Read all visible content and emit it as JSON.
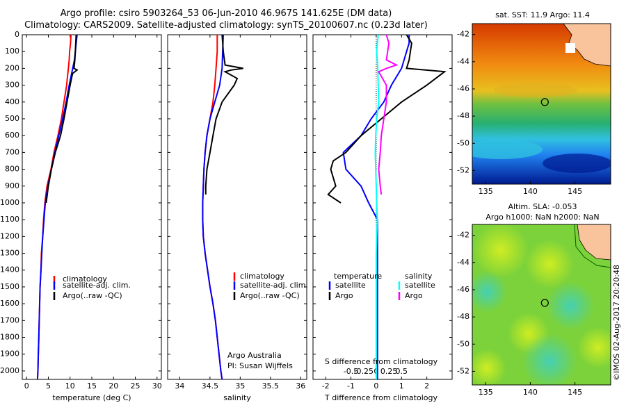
{
  "header": {
    "line1": "Argo profile: csiro 5903264_53 06-Jun-2010 46.967S 141.625E (DM data)",
    "line2": "Climatology: CARS2009. Satellite-adjusted climatology: synTS_20100607.nc (0.23d later)"
  },
  "maps": {
    "sst_title": "sat. SST: 11.9 Argo: 11.4",
    "sla_title1": "Altim. SLA: -0.053",
    "sla_title2": "Argo h1000: NaN h2000: NaN",
    "lon_ticks": [
      "135",
      "140",
      "145"
    ],
    "lat_ticks": [
      "-42",
      "-44",
      "-46",
      "-48",
      "-50",
      "-52"
    ],
    "stamp": "©IMOS 02-Aug-2017 20:20:48",
    "float_position": {
      "lon": 141.625,
      "lat": -46.967
    }
  },
  "colors": {
    "climatology": "#ff0000",
    "satellite": "#0000ff",
    "argo": "#000000",
    "salinity_satellite": "#00ffff",
    "salinity_argo": "#ff00ff",
    "land": "#f9c39c"
  },
  "chart_data": [
    {
      "type": "line",
      "panel": "temperature",
      "xlabel": "temperature (deg C)",
      "xlim": [
        -1,
        31
      ],
      "xticks": [
        "0",
        "5",
        "10",
        "15",
        "20",
        "25",
        "30"
      ],
      "ylim": [
        2050,
        0
      ],
      "yticks": [
        "0",
        "100",
        "200",
        "300",
        "400",
        "500",
        "600",
        "700",
        "800",
        "900",
        "1000",
        "1100",
        "1200",
        "1300",
        "1400",
        "1500",
        "1600",
        "1700",
        "1800",
        "1900",
        "2000"
      ],
      "legend": [
        "climatology",
        "satellite-adj. clim.",
        "Argo(..raw -QC)"
      ],
      "series": [
        {
          "name": "climatology",
          "depth": [
            0,
            50,
            100,
            150,
            200,
            250,
            300,
            400,
            500,
            600,
            700,
            800,
            900,
            1000,
            1100,
            1200,
            1300,
            1400,
            1500,
            1600,
            1700,
            1800,
            1900,
            2000,
            2050
          ],
          "values": [
            10.2,
            10.1,
            9.9,
            9.8,
            9.6,
            9.4,
            9.2,
            8.6,
            8.0,
            7.2,
            6.3,
            5.6,
            4.7,
            4.2,
            3.9,
            3.7,
            3.4,
            3.3,
            3.1,
            3.0,
            2.9,
            2.8,
            2.7,
            2.6,
            2.5
          ]
        },
        {
          "name": "satellite-adj. clim.",
          "depth": [
            0,
            50,
            100,
            150,
            200,
            250,
            300,
            400,
            500,
            600,
            700,
            800,
            900,
            1000,
            1100,
            1200,
            1300,
            1400,
            1500,
            1600,
            1700,
            1800,
            1900,
            2000,
            2050
          ],
          "values": [
            11.6,
            11.4,
            11.2,
            11.0,
            10.6,
            10.2,
            9.8,
            9.1,
            8.3,
            7.4,
            6.5,
            5.7,
            4.9,
            4.3,
            4.0,
            3.7,
            3.5,
            3.3,
            3.1,
            3.0,
            2.9,
            2.8,
            2.7,
            2.6,
            2.5
          ]
        },
        {
          "name": "Argo(..raw -QC)",
          "depth": [
            0,
            50,
            100,
            150,
            200,
            210,
            230,
            250,
            300,
            400,
            500,
            600,
            700,
            800,
            900,
            1000
          ],
          "values": [
            11.4,
            11.3,
            11.2,
            11.1,
            10.9,
            11.6,
            10.6,
            10.4,
            10.0,
            9.3,
            8.6,
            7.8,
            6.6,
            5.7,
            5.0,
            4.5
          ]
        }
      ]
    },
    {
      "type": "line",
      "panel": "salinity",
      "xlabel": "salinity",
      "xlim": [
        33.8,
        36.1
      ],
      "xticks": [
        "34",
        "34.5",
        "35",
        "35.5",
        "36"
      ],
      "ylim": [
        2050,
        0
      ],
      "legend": [
        "climatology",
        "satellite-adj. clim.",
        "Argo(..raw -QC)"
      ],
      "annotation": [
        "Argo Australia",
        "PI: Susan Wijffels"
      ],
      "series": [
        {
          "name": "climatology",
          "depth": [
            0,
            100,
            200,
            300,
            400,
            500,
            600,
            700,
            800,
            900,
            1000,
            1100,
            1200,
            1300,
            1400,
            1500,
            1600,
            1700,
            1800,
            1900,
            2000,
            2050
          ],
          "values": [
            34.62,
            34.62,
            34.6,
            34.58,
            34.55,
            34.5,
            34.45,
            34.42,
            34.4,
            34.39,
            34.38,
            34.38,
            34.39,
            34.42,
            34.46,
            34.5,
            34.55,
            34.59,
            34.62,
            34.65,
            34.68,
            34.7
          ]
        },
        {
          "name": "satellite-adj. clim.",
          "depth": [
            0,
            100,
            200,
            300,
            400,
            500,
            600,
            700,
            800,
            900,
            1000,
            1100,
            1200,
            1300,
            1400,
            1500,
            1600,
            1700,
            1800,
            1900,
            2000,
            2050
          ],
          "values": [
            34.72,
            34.71,
            34.7,
            34.66,
            34.58,
            34.5,
            34.45,
            34.42,
            34.4,
            34.39,
            34.38,
            34.38,
            34.39,
            34.42,
            34.46,
            34.5,
            34.55,
            34.59,
            34.62,
            34.65,
            34.68,
            34.7
          ]
        },
        {
          "name": "Argo(..raw -QC)",
          "depth": [
            0,
            100,
            180,
            200,
            210,
            220,
            260,
            300,
            350,
            400,
            500,
            600,
            700,
            800,
            900,
            950
          ],
          "values": [
            34.7,
            34.72,
            34.75,
            35.05,
            34.85,
            34.75,
            34.95,
            34.9,
            34.8,
            34.7,
            34.6,
            34.55,
            34.5,
            34.45,
            34.43,
            34.43
          ]
        }
      ]
    },
    {
      "type": "line",
      "panel": "difference",
      "xlabel_bottom": "T difference from climatology",
      "xlabel_top": "S difference from climatology",
      "xlim": [
        -2.5,
        3.0
      ],
      "xticks_T": [
        "-2",
        "-1",
        "0",
        "1",
        "2"
      ],
      "xticks_S": [
        "-0.5",
        "-0.25",
        "0",
        "0.25",
        "0.5"
      ],
      "ylim": [
        2050,
        0
      ],
      "legend": {
        "temperature_header": "temperature",
        "salinity_header": "salinity",
        "labels": [
          "satellite",
          "Argo",
          "satellite",
          "Argo"
        ]
      },
      "series": [
        {
          "name": "temperature satellite",
          "depth": [
            0,
            50,
            100,
            200,
            300,
            400,
            500,
            600,
            700,
            800,
            900,
            1000,
            1100,
            1200,
            1300,
            1400,
            1600,
            1800,
            2000,
            2050
          ],
          "values": [
            1.3,
            1.3,
            1.2,
            1.0,
            0.6,
            0.3,
            -0.2,
            -0.6,
            -1.3,
            -1.2,
            -0.6,
            -0.3,
            0.05,
            0.05,
            0.05,
            0.05,
            0.05,
            0.05,
            0.05,
            0.05
          ]
        },
        {
          "name": "temperature Argo",
          "depth": [
            0,
            50,
            150,
            200,
            220,
            300,
            400,
            500,
            600,
            700,
            750,
            800,
            900,
            950,
            1000
          ],
          "values": [
            1.2,
            1.4,
            1.3,
            1.2,
            2.7,
            2.0,
            1.0,
            0.2,
            -0.6,
            -1.2,
            -1.7,
            -1.8,
            -1.6,
            -1.9,
            -1.4
          ]
        },
        {
          "name": "salinity satellite",
          "depth": [
            0,
            50,
            100,
            200,
            400,
            500,
            600,
            700,
            800,
            900,
            1000,
            1100,
            1200,
            1300,
            1400,
            1500,
            1600,
            1800,
            2000,
            2050
          ],
          "values": [
            0.04,
            0.02,
            0.01,
            0.03,
            0.05,
            0.01,
            -0.01,
            -0.02,
            -0.01,
            0.0,
            0.01,
            0.02,
            0.01,
            0.0,
            0.0,
            0.0,
            0.0,
            0.0,
            0.0,
            0.0
          ]
        },
        {
          "name": "salinity Argo",
          "depth": [
            0,
            50,
            150,
            180,
            200,
            220,
            300,
            400,
            500,
            600,
            700,
            800,
            900,
            950
          ],
          "values": [
            0.2,
            0.25,
            0.2,
            0.4,
            0.2,
            0.05,
            0.2,
            0.2,
            0.15,
            0.1,
            0.08,
            0.05,
            0.08,
            0.1
          ]
        }
      ]
    }
  ]
}
